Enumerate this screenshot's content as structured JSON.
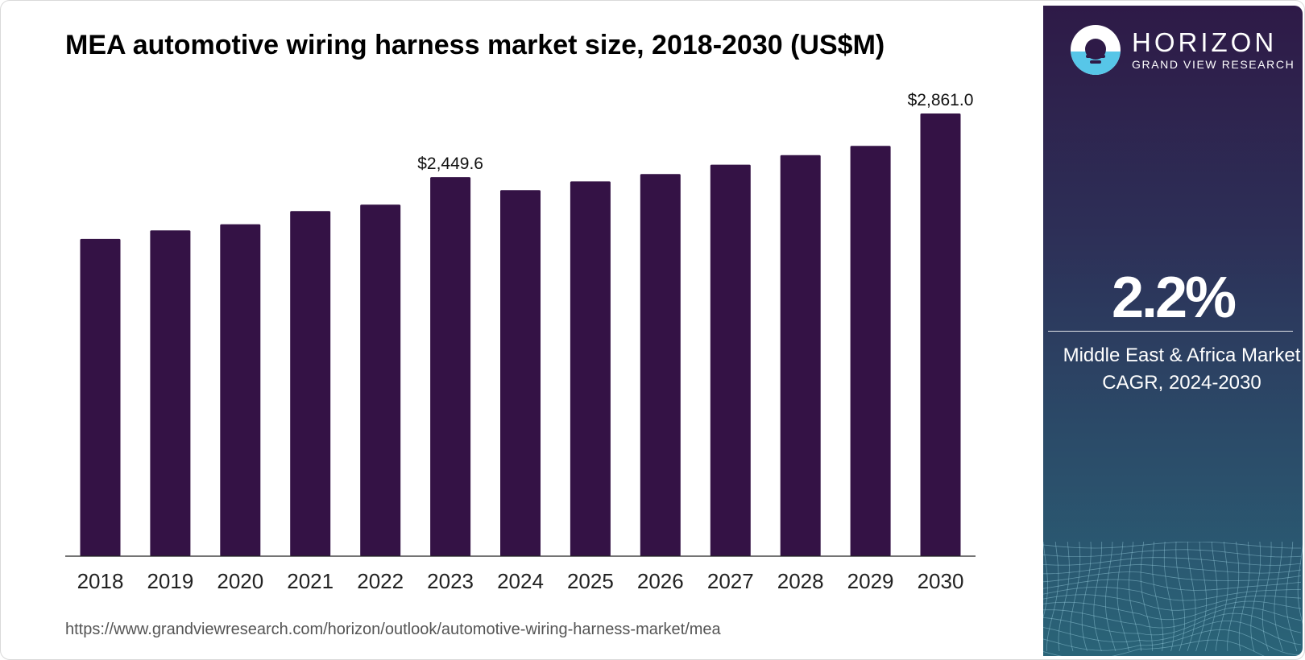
{
  "title": "MEA automotive wiring harness market size, 2018-2030 (US$M)",
  "source_url": "https://www.grandviewresearch.com/horizon/outlook/automotive-wiring-harness-market/mea",
  "colors": {
    "bar": "#341245",
    "axis": "#222222",
    "panel_top": "#2e1a47",
    "panel_bottom": "#2a6478",
    "accent": "#57c6e8"
  },
  "logo": {
    "name": "HORIZON",
    "subtitle": "GRAND VIEW RESEARCH",
    "icon": "horizon-sun-icon"
  },
  "side_panel": {
    "cagr_value": "2.2%",
    "cagr_line1": "Middle East & Africa Market",
    "cagr_line2": "CAGR, 2024-2030"
  },
  "chart_data": {
    "type": "bar",
    "title": "MEA automotive wiring harness market size, 2018-2030 (US$M)",
    "xlabel": "",
    "ylabel": "",
    "categories": [
      "2018",
      "2019",
      "2020",
      "2021",
      "2022",
      "2023",
      "2024",
      "2025",
      "2026",
      "2027",
      "2028",
      "2029",
      "2030"
    ],
    "values": [
      2050.0,
      2105.0,
      2145.0,
      2230.0,
      2272.0,
      2449.6,
      2366.0,
      2422.0,
      2470.0,
      2530.0,
      2592.0,
      2652.0,
      2861.0
    ],
    "data_labels": [
      {
        "category": "2023",
        "text": "$2,449.6"
      },
      {
        "category": "2030",
        "text": "$2,861.0"
      }
    ],
    "ylim": [
      0,
      2861.0
    ],
    "grid": false,
    "legend": "none"
  }
}
